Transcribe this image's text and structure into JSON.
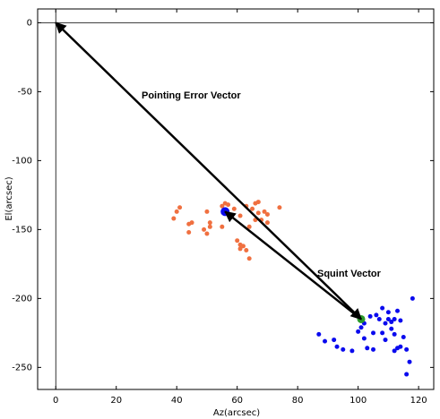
{
  "chart_data": {
    "type": "scatter",
    "x_label": "Az(arcsec)",
    "y_label": "El(arcsec)",
    "xlim": [
      -6,
      125
    ],
    "ylim": [
      -266,
      10
    ],
    "xticks": [
      0,
      20,
      40,
      60,
      80,
      100,
      120
    ],
    "yticks": [
      0,
      -50,
      -100,
      -150,
      -200,
      -250
    ],
    "zero_lines": true,
    "series": [
      {
        "color": "#f07040",
        "size": 2.5,
        "x": [
          40,
          41,
          39,
          44,
          45,
          44,
          49,
          50,
          51,
          50,
          51,
          55,
          56,
          55,
          57,
          59,
          60,
          61,
          61,
          62,
          63,
          64,
          63,
          65,
          66,
          67,
          67,
          68,
          69,
          70,
          70,
          66,
          64,
          74,
          61
        ],
        "y": [
          -137,
          -134,
          -142,
          -146,
          -145,
          -152,
          -150,
          -153,
          -148,
          -137,
          -145,
          -133,
          -131,
          -148,
          -132,
          -135,
          -158,
          -161,
          -164,
          -162,
          -165,
          -171,
          -133,
          -135,
          -131,
          -130,
          -138,
          -143,
          -137,
          -145,
          -139,
          -143,
          -148,
          -134,
          -140
        ]
      },
      {
        "color": "#0a0aee",
        "size": 2.5,
        "x": [
          87,
          89,
          92,
          93,
          95,
          98,
          100,
          101,
          102,
          102,
          103,
          105,
          104,
          106,
          107,
          108,
          108,
          109,
          109,
          110,
          110,
          111,
          112,
          112,
          113,
          113,
          114,
          114,
          115,
          116,
          116,
          117,
          118,
          112,
          105,
          111
        ],
        "y": [
          -226,
          -231,
          -230,
          -235,
          -237,
          -238,
          -224,
          -221,
          -218,
          -229,
          -236,
          -237,
          -213,
          -212,
          -215,
          -207,
          -225,
          -218,
          -230,
          -215,
          -210,
          -222,
          -215,
          -238,
          -236,
          -209,
          -216,
          -235,
          -228,
          -237,
          -255,
          -246,
          -200,
          -226,
          -225,
          -217
        ]
      },
      {
        "color": "#0a0aee",
        "size": 5,
        "x": [
          56
        ],
        "y": [
          -137
        ]
      },
      {
        "color": "#2a9a2a",
        "size": 4.5,
        "x": [
          101
        ],
        "y": [
          -215
        ]
      }
    ],
    "vectors": [
      {
        "label": "Pointing Error Vector",
        "from": [
          101,
          -215
        ],
        "to": [
          0,
          0
        ],
        "both_heads": true
      },
      {
        "label": "Squint Vector",
        "from": [
          101,
          -215
        ],
        "to": [
          56,
          -137
        ],
        "both_heads": false
      }
    ]
  }
}
